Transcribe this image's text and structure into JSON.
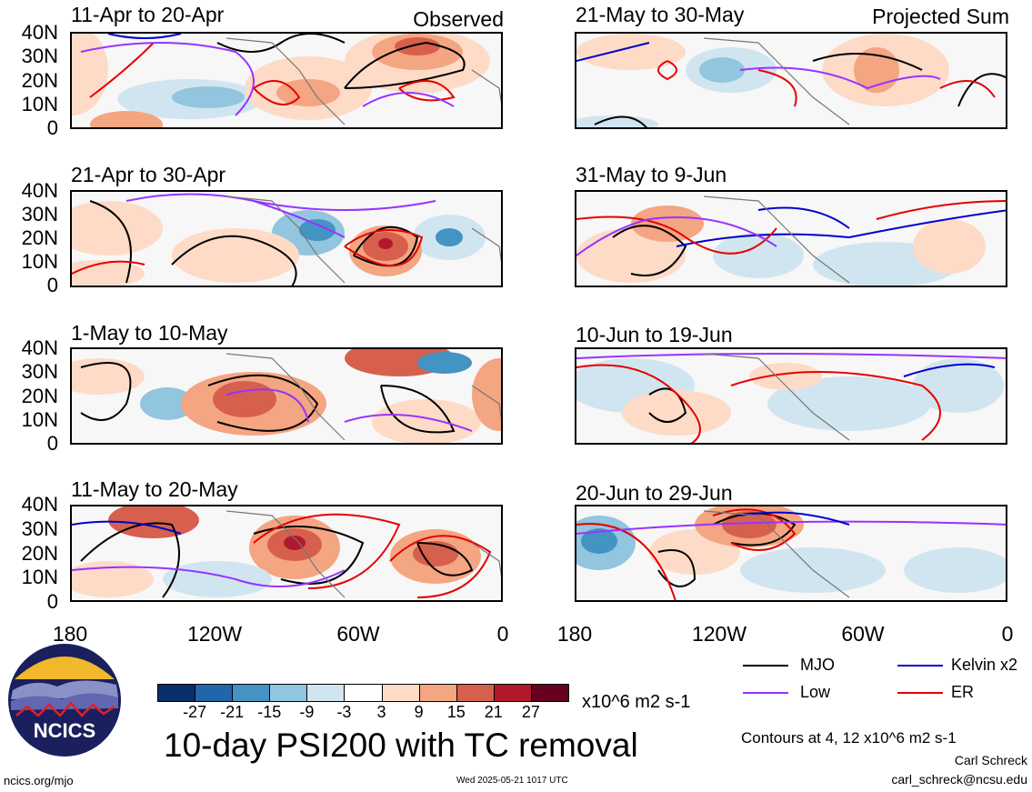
{
  "header": {
    "left_label": "Observed",
    "right_label": "Projected Sum"
  },
  "panels_left": [
    {
      "title": "11-Apr to 20-Apr"
    },
    {
      "title": "21-Apr to 30-Apr"
    },
    {
      "title": "1-May to 10-May"
    },
    {
      "title": "11-May to 20-May"
    }
  ],
  "panels_right": [
    {
      "title": "21-May to 30-May"
    },
    {
      "title": "31-May to 9-Jun"
    },
    {
      "title": "10-Jun to 19-Jun"
    },
    {
      "title": "20-Jun to 29-Jun"
    }
  ],
  "y_axis": {
    "ticks": [
      "40N",
      "30N",
      "20N",
      "10N",
      "0"
    ]
  },
  "x_axis": {
    "ticks": [
      "180",
      "120W",
      "60W",
      "0"
    ]
  },
  "colorbar": {
    "colors": [
      "#08306b",
      "#2166ac",
      "#4393c3",
      "#92c5de",
      "#d1e5f0",
      "#ffffff",
      "#fddbc7",
      "#f4a582",
      "#d6604d",
      "#b2182b",
      "#67001f"
    ],
    "tick_labels": [
      "-27",
      "-21",
      "-15",
      "-9",
      "-3",
      "3",
      "9",
      "15",
      "21",
      "27"
    ],
    "units": "x10^6 m2 s-1"
  },
  "legend": {
    "items": [
      {
        "label": "MJO",
        "color": "#000000"
      },
      {
        "label": "Kelvin x2",
        "color": "#0000cc"
      },
      {
        "label": "Low",
        "color": "#9933ff"
      },
      {
        "label": "ER",
        "color": "#e60000"
      }
    ],
    "contours_note": "Contours at 4, 12 x10^6 m2 s-1"
  },
  "main_title": "10-day PSI200 with TC removal",
  "logo": {
    "text": "NCICS",
    "url": "ncics.org/mjo"
  },
  "timestamp": "Wed 2025-05-21 1017 UTC",
  "author": {
    "name": "Carl Schreck",
    "email": "carl_schreck@ncsu.edu"
  }
}
